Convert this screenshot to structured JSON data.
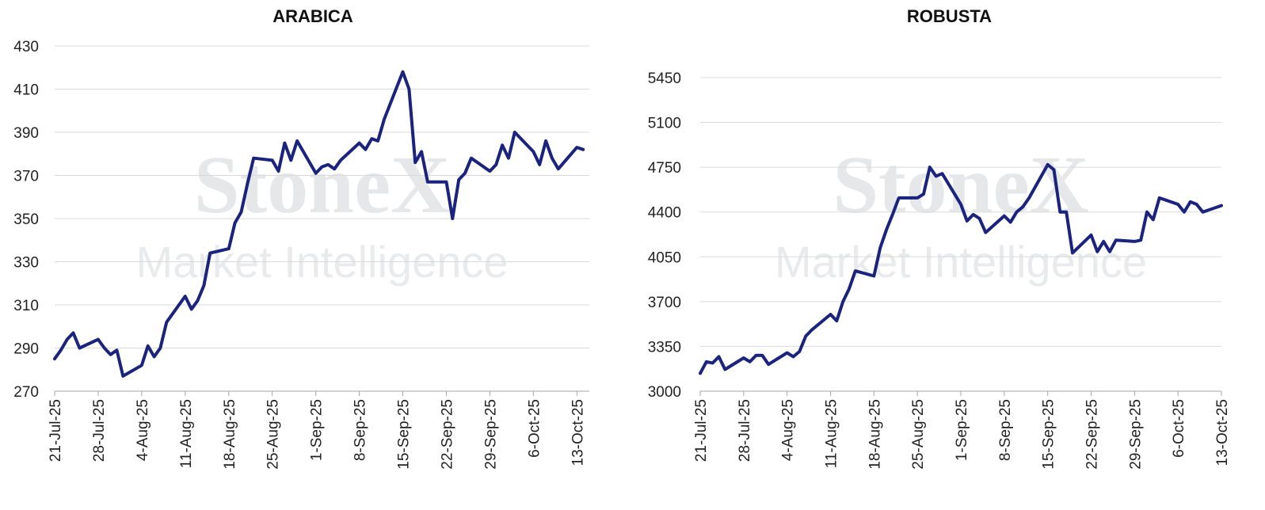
{
  "watermark": {
    "brand": "StoneX",
    "tagline": "Market Intelligence",
    "color": "#e6e7e9"
  },
  "colors": {
    "line": "#1a237e",
    "grid": "#d9d9d9"
  },
  "chart_data": [
    {
      "type": "line",
      "title": "ARABICA",
      "xlabel": "",
      "ylabel": "",
      "ylim": [
        270,
        430
      ],
      "yticks": [
        270,
        290,
        310,
        330,
        350,
        370,
        390,
        410,
        430
      ],
      "xlim": [
        "2025-07-21",
        "2025-10-15"
      ],
      "xticks": [
        {
          "date": "2025-07-21",
          "label": "21-Jul-25"
        },
        {
          "date": "2025-07-28",
          "label": "28-Jul-25"
        },
        {
          "date": "2025-08-04",
          "label": "4-Aug-25"
        },
        {
          "date": "2025-08-11",
          "label": "11-Aug-25"
        },
        {
          "date": "2025-08-18",
          "label": "18-Aug-25"
        },
        {
          "date": "2025-08-25",
          "label": "25-Aug-25"
        },
        {
          "date": "2025-09-01",
          "label": "1-Sep-25"
        },
        {
          "date": "2025-09-08",
          "label": "8-Sep-25"
        },
        {
          "date": "2025-09-15",
          "label": "15-Sep-25"
        },
        {
          "date": "2025-09-22",
          "label": "22-Sep-25"
        },
        {
          "date": "2025-09-29",
          "label": "29-Sep-25"
        },
        {
          "date": "2025-10-06",
          "label": "6-Oct-25"
        },
        {
          "date": "2025-10-13",
          "label": "13-Oct-25"
        }
      ],
      "grid": true,
      "series": [
        {
          "x": [
            "2025-07-21",
            "2025-07-22",
            "2025-07-23",
            "2025-07-24",
            "2025-07-25",
            "2025-07-28",
            "2025-07-29",
            "2025-07-30",
            "2025-07-31",
            "2025-08-01",
            "2025-08-04",
            "2025-08-05",
            "2025-08-06",
            "2025-08-07",
            "2025-08-08",
            "2025-08-11",
            "2025-08-12",
            "2025-08-13",
            "2025-08-14",
            "2025-08-15",
            "2025-08-18",
            "2025-08-19",
            "2025-08-20",
            "2025-08-21",
            "2025-08-22",
            "2025-08-25",
            "2025-08-26",
            "2025-08-27",
            "2025-08-28",
            "2025-08-29",
            "2025-09-01",
            "2025-09-02",
            "2025-09-03",
            "2025-09-04",
            "2025-09-05",
            "2025-09-08",
            "2025-09-09",
            "2025-09-10",
            "2025-09-11",
            "2025-09-12",
            "2025-09-15",
            "2025-09-16",
            "2025-09-17",
            "2025-09-18",
            "2025-09-19",
            "2025-09-22",
            "2025-09-23",
            "2025-09-24",
            "2025-09-25",
            "2025-09-26",
            "2025-09-29",
            "2025-09-30",
            "2025-10-01",
            "2025-10-02",
            "2025-10-03",
            "2025-10-06",
            "2025-10-07",
            "2025-10-08",
            "2025-10-09",
            "2025-10-10",
            "2025-10-13",
            "2025-10-14"
          ],
          "values": [
            285,
            289,
            294,
            297,
            290,
            294,
            290,
            287,
            289,
            277,
            282,
            291,
            286,
            290,
            302,
            314,
            308,
            312,
            319,
            334,
            336,
            348,
            353,
            366,
            378,
            377,
            372,
            385,
            377,
            386,
            371,
            374,
            375,
            373,
            377,
            385,
            382,
            387,
            386,
            396,
            418,
            410,
            376,
            381,
            367,
            367,
            350,
            368,
            371,
            378,
            372,
            375,
            384,
            378,
            390,
            381,
            375,
            386,
            378,
            373,
            383,
            382
          ]
        }
      ]
    },
    {
      "type": "line",
      "title": "ROBUSTA",
      "xlabel": "",
      "ylabel": "",
      "ylim": [
        3000,
        5450
      ],
      "yticks": [
        3000,
        3350,
        3700,
        4050,
        4400,
        4750,
        5100,
        5450
      ],
      "xlim": [
        "2025-07-21",
        "2025-10-13"
      ],
      "xticks": [
        {
          "date": "2025-07-21",
          "label": "21-Jul-25"
        },
        {
          "date": "2025-07-28",
          "label": "28-Jul-25"
        },
        {
          "date": "2025-08-04",
          "label": "4-Aug-25"
        },
        {
          "date": "2025-08-11",
          "label": "11-Aug-25"
        },
        {
          "date": "2025-08-18",
          "label": "18-Aug-25"
        },
        {
          "date": "2025-08-25",
          "label": "25-Aug-25"
        },
        {
          "date": "2025-09-01",
          "label": "1-Sep-25"
        },
        {
          "date": "2025-09-08",
          "label": "8-Sep-25"
        },
        {
          "date": "2025-09-15",
          "label": "15-Sep-25"
        },
        {
          "date": "2025-09-22",
          "label": "22-Sep-25"
        },
        {
          "date": "2025-09-29",
          "label": "29-Sep-25"
        },
        {
          "date": "2025-10-06",
          "label": "6-Oct-25"
        },
        {
          "date": "2025-10-13",
          "label": "13-Oct-25"
        }
      ],
      "grid": true,
      "series": [
        {
          "x": [
            "2025-07-21",
            "2025-07-22",
            "2025-07-23",
            "2025-07-24",
            "2025-07-25",
            "2025-07-28",
            "2025-07-29",
            "2025-07-30",
            "2025-07-31",
            "2025-08-01",
            "2025-08-04",
            "2025-08-05",
            "2025-08-06",
            "2025-08-07",
            "2025-08-08",
            "2025-08-11",
            "2025-08-12",
            "2025-08-13",
            "2025-08-14",
            "2025-08-15",
            "2025-08-18",
            "2025-08-19",
            "2025-08-20",
            "2025-08-21",
            "2025-08-22",
            "2025-08-25",
            "2025-08-26",
            "2025-08-27",
            "2025-08-28",
            "2025-08-29",
            "2025-09-01",
            "2025-09-02",
            "2025-09-03",
            "2025-09-04",
            "2025-09-05",
            "2025-09-08",
            "2025-09-09",
            "2025-09-10",
            "2025-09-11",
            "2025-09-12",
            "2025-09-15",
            "2025-09-16",
            "2025-09-17",
            "2025-09-18",
            "2025-09-19",
            "2025-09-22",
            "2025-09-23",
            "2025-09-24",
            "2025-09-25",
            "2025-09-26",
            "2025-09-29",
            "2025-09-30",
            "2025-10-01",
            "2025-10-02",
            "2025-10-03",
            "2025-10-06",
            "2025-10-07",
            "2025-10-08",
            "2025-10-09",
            "2025-10-10",
            "2025-10-13"
          ],
          "values": [
            3140,
            3230,
            3220,
            3270,
            3170,
            3260,
            3230,
            3280,
            3280,
            3210,
            3300,
            3270,
            3310,
            3430,
            3480,
            3600,
            3550,
            3700,
            3800,
            3940,
            3900,
            4120,
            4260,
            4380,
            4510,
            4510,
            4540,
            4750,
            4680,
            4700,
            4460,
            4330,
            4380,
            4350,
            4240,
            4370,
            4320,
            4400,
            4440,
            4510,
            4770,
            4730,
            4400,
            4400,
            4080,
            4220,
            4090,
            4170,
            4090,
            4180,
            4170,
            4180,
            4400,
            4340,
            4510,
            4460,
            4400,
            4480,
            4460,
            4400,
            4450
          ]
        }
      ]
    }
  ]
}
